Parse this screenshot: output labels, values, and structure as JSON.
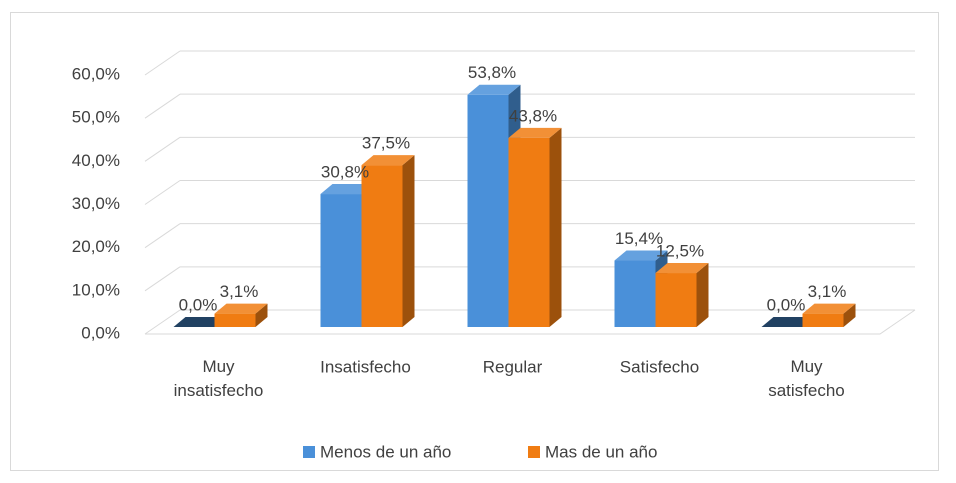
{
  "chart_data": {
    "type": "bar3d",
    "categories": [
      "Muy insatisfecho",
      "Insatisfecho",
      "Regular",
      "Satisfecho",
      "Muy satisfecho"
    ],
    "series": [
      {
        "name": "Menos de un año",
        "color": "#4a90d9",
        "values": [
          0,
          30.8,
          53.8,
          15.4,
          0
        ],
        "value_labels": [
          "0,0%",
          "30,8%",
          "53,8%",
          "15,4%",
          "0,0%"
        ]
      },
      {
        "name": "Mas de un año",
        "color": "#f07c12",
        "values": [
          3.1,
          37.5,
          43.8,
          12.5,
          3.1
        ],
        "value_labels": [
          "3,1%",
          "37,5%",
          "43,8%",
          "12,5%",
          "3,1%"
        ]
      }
    ],
    "ylim": [
      0,
      60
    ],
    "yticks": [
      {
        "value": 0,
        "label": "0,0%"
      },
      {
        "value": 10,
        "label": "10,0%"
      },
      {
        "value": 20,
        "label": "20,0%"
      },
      {
        "value": 30,
        "label": "30,0%"
      },
      {
        "value": 40,
        "label": "40,0%"
      },
      {
        "value": 50,
        "label": "50,0%"
      },
      {
        "value": 60,
        "label": "60,0%"
      }
    ],
    "grid": true,
    "legend": "bottom"
  }
}
